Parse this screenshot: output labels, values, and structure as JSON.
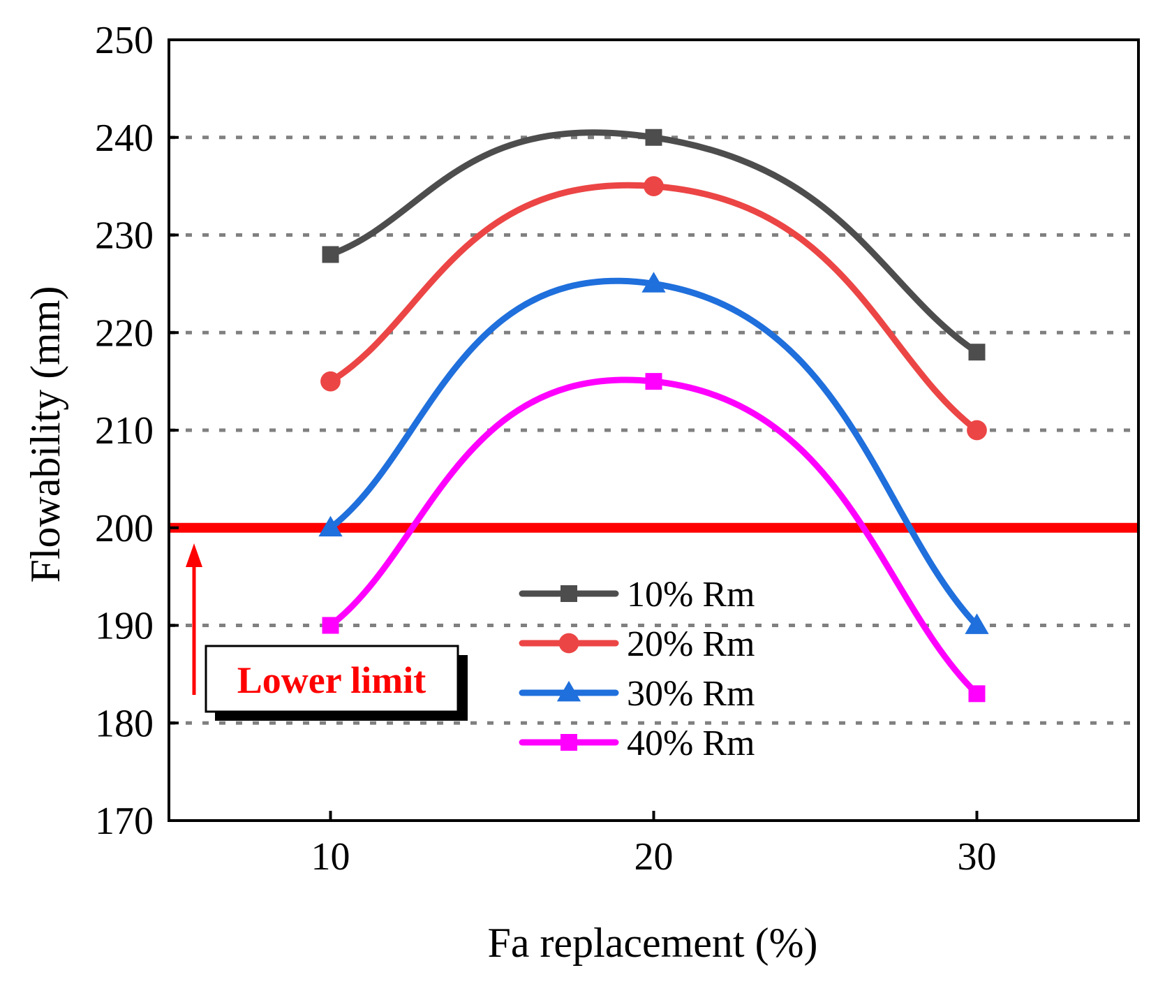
{
  "chart_data": {
    "type": "line",
    "title": "",
    "xlabel": "Fa replacement (%)",
    "ylabel": "Flowability (mm)",
    "xlim": [
      5,
      35
    ],
    "ylim": [
      170,
      250
    ],
    "x": [
      10,
      20,
      30
    ],
    "xticks": [
      "10",
      "20",
      "30"
    ],
    "yticks": [
      "170",
      "180",
      "190",
      "200",
      "210",
      "220",
      "230",
      "240",
      "250"
    ],
    "grid": "dotted horizontal at 180-240",
    "series": [
      {
        "name": "10% Rm",
        "values": [
          228,
          240,
          218
        ],
        "color": "#4d4d4d",
        "marker": "square"
      },
      {
        "name": "20% Rm",
        "values": [
          215,
          235,
          210
        ],
        "color": "#ec4545",
        "marker": "circle"
      },
      {
        "name": "30% Rm",
        "values": [
          200,
          225,
          190
        ],
        "color": "#1f6fdc",
        "marker": "triangle"
      },
      {
        "name": "40% Rm",
        "values": [
          190,
          215,
          183
        ],
        "color": "#ff00ff",
        "marker": "square"
      }
    ],
    "reference_line": {
      "value": 200,
      "color": "#ff0000"
    },
    "annotation": {
      "text": "Lower limit",
      "color": "#ff0000"
    },
    "legend_position": "center-right"
  }
}
